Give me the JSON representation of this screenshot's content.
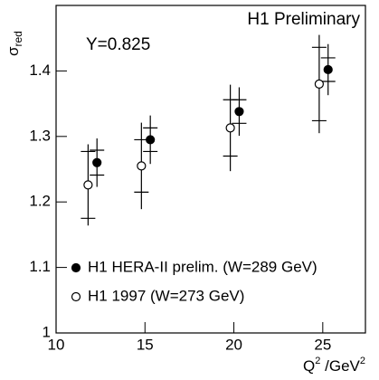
{
  "chart_data": {
    "type": "scatter",
    "annotations": [
      "H1 Preliminary",
      "Y=0.825"
    ],
    "ylabel": "σ",
    "ylabel_sub": "red",
    "xlabel": [
      "Q",
      "2",
      " /GeV",
      "2"
    ],
    "xlim": [
      10,
      27.4
    ],
    "ylim": [
      1,
      1.5
    ],
    "xticks": [
      10,
      15,
      20,
      25
    ],
    "yticks": [
      1,
      1.1,
      1.2,
      1.3,
      1.4
    ],
    "legend": "lower left",
    "series": [
      {
        "name": "H1 HERA-II prelim. (W=289 GeV)",
        "color": "#000000",
        "marker": "filled",
        "x": [
          12.3,
          15.3,
          20.3,
          25.3
        ],
        "values": [
          1.26,
          1.295,
          1.338,
          1.402
        ],
        "errors": [
          0.037,
          0.037,
          0.037,
          0.039
        ],
        "stat_errors": [
          0.019,
          0.018,
          0.018,
          0.018
        ]
      },
      {
        "name": "H1 1997 (W=273 GeV)",
        "color": "#000000",
        "marker": "open",
        "x": [
          11.8,
          14.8,
          19.8,
          24.8
        ],
        "values": [
          1.226,
          1.255,
          1.313,
          1.38
        ],
        "errors": [
          0.062,
          0.066,
          0.066,
          0.075
        ],
        "stat_errors": [
          0.051,
          0.04,
          0.043,
          0.056
        ]
      }
    ]
  }
}
